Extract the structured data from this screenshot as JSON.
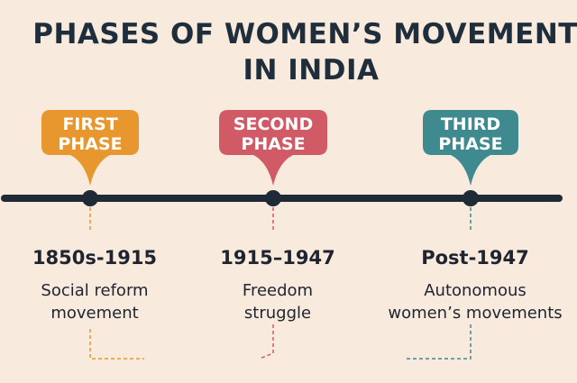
{
  "header": {
    "title": [
      "PHASES OF WOMEN’S MOVEMENTS",
      "IN INDIA"
    ]
  },
  "phases": [
    {
      "label": [
        "FIRST",
        "PHASE"
      ],
      "period": "1850s-1915",
      "description": [
        "Social reform",
        "movement"
      ]
    },
    {
      "label": [
        "SECOND",
        "PHASE"
      ],
      "period": "1915–1947",
      "description": [
        "Freedom",
        "struggle"
      ]
    },
    {
      "label": [
        "THIRD",
        "PHASE"
      ],
      "period": "Post-1947",
      "description": [
        "Autonomous",
        "women’s movements"
      ]
    }
  ]
}
